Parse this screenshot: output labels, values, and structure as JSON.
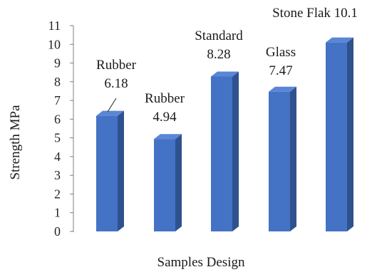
{
  "chart_data": {
    "type": "bar",
    "categories": [
      "Rubber",
      "Rubber",
      "Standard",
      "Glass",
      "Stone Flak"
    ],
    "values": [
      6.18,
      4.94,
      8.28,
      7.47,
      10.1
    ],
    "data_labels": [
      {
        "name": "Rubber",
        "value": "6.18"
      },
      {
        "name": "Rubber",
        "value": "4.94"
      },
      {
        "name": "Standard",
        "value": "8.28"
      },
      {
        "name": "Glass",
        "value": "7.47"
      },
      {
        "name": "Stone Flak",
        "value": "10.1"
      }
    ],
    "title": "",
    "xlabel": "Samples Design",
    "ylabel": "Strength MPa",
    "ylim": [
      0,
      11
    ],
    "yticks": [
      0,
      1,
      2,
      3,
      4,
      5,
      6,
      7,
      8,
      9,
      10,
      11
    ],
    "grid": false,
    "legend": "none",
    "style": "3d-column",
    "colors": {
      "front": "#4472C4",
      "side": "#2F528F",
      "top": "#5B86D6"
    }
  }
}
